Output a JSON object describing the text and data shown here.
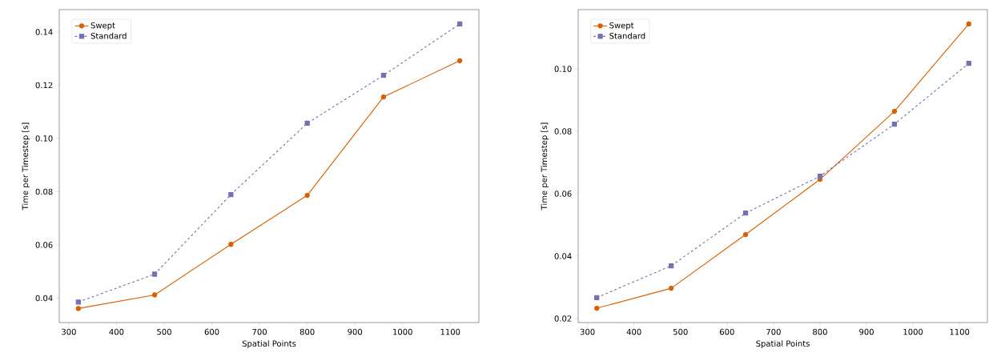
{
  "chart_data": [
    {
      "type": "line",
      "xlabel": "Spatial Points",
      "ylabel": "Time per Timestep [s]",
      "x": [
        320,
        480,
        640,
        800,
        960,
        1120
      ],
      "series": [
        {
          "name": "Swept",
          "color": "#d95f02",
          "marker": "circle",
          "line_style": "solid",
          "values": [
            0.0361,
            0.0412,
            0.0602,
            0.0786,
            0.1156,
            0.1292
          ]
        },
        {
          "name": "Standard",
          "color": "#7570b3",
          "marker": "square",
          "line_style": "dashed",
          "values": [
            0.0385,
            0.049,
            0.0789,
            0.1057,
            0.1237,
            0.143
          ]
        }
      ],
      "xlim": [
        280,
        1160
      ],
      "ylim": [
        0.0308,
        0.1484
      ],
      "xticks": [
        300,
        400,
        500,
        600,
        700,
        800,
        900,
        1000,
        1100
      ],
      "yticks": [
        0.04,
        0.06,
        0.08,
        {
          "value": 0.1,
          "label": "0.10"
        },
        0.12,
        0.14
      ],
      "legend": "top left",
      "grid": false
    },
    {
      "type": "line",
      "xlabel": "Spatial Points",
      "ylabel": "Time per Timestep [s]",
      "x": [
        320,
        480,
        640,
        800,
        960,
        1120
      ],
      "series": [
        {
          "name": "Swept",
          "color": "#d95f02",
          "marker": "circle",
          "line_style": "solid",
          "values": [
            0.0233,
            0.0297,
            0.0469,
            0.0646,
            0.0864,
            0.1144
          ]
        },
        {
          "name": "Standard",
          "color": "#7570b3",
          "marker": "square",
          "line_style": "dashed",
          "values": [
            0.0267,
            0.0369,
            0.0538,
            0.0656,
            0.0823,
            0.1018
          ]
        }
      ],
      "xlim": [
        280,
        1160
      ],
      "ylim": [
        0.0187,
        0.119
      ],
      "xticks": [
        300,
        400,
        500,
        600,
        700,
        800,
        900,
        1000,
        1100
      ],
      "yticks": [
        0.02,
        0.04,
        0.06,
        0.08,
        {
          "value": 0.1,
          "label": "0.10"
        }
      ],
      "legend": "top left",
      "grid": false
    }
  ]
}
